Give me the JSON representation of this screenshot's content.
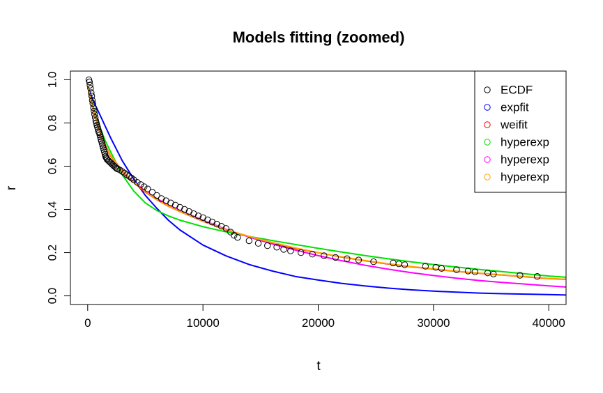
{
  "chart_data": {
    "type": "line",
    "title": "Models fitting (zoomed)",
    "xlabel": "t",
    "ylabel": "r",
    "xlim": [
      -1500,
      41500
    ],
    "ylim": [
      -0.04,
      1.04
    ],
    "xticks": [
      0,
      10000,
      20000,
      30000,
      40000
    ],
    "xtick_labels": [
      "0",
      "10000",
      "20000",
      "30000",
      "40000"
    ],
    "yticks": [
      0.0,
      0.2,
      0.4,
      0.6,
      0.8,
      1.0
    ],
    "ytick_labels": [
      "0.0",
      "0.2",
      "0.4",
      "0.6",
      "0.8",
      "1.0"
    ],
    "grid": false,
    "legend_position": "top-right",
    "ecdf": {
      "name": "ECDF",
      "color": "#000000",
      "points": [
        [
          100,
          1.0
        ],
        [
          150,
          0.99
        ],
        [
          200,
          0.975
        ],
        [
          250,
          0.96
        ],
        [
          300,
          0.94
        ],
        [
          350,
          0.925
        ],
        [
          400,
          0.905
        ],
        [
          450,
          0.89
        ],
        [
          500,
          0.87
        ],
        [
          550,
          0.855
        ],
        [
          600,
          0.84
        ],
        [
          650,
          0.825
        ],
        [
          700,
          0.81
        ],
        [
          750,
          0.8
        ],
        [
          800,
          0.79
        ],
        [
          850,
          0.78
        ],
        [
          900,
          0.77
        ],
        [
          950,
          0.76
        ],
        [
          1000,
          0.755
        ],
        [
          1050,
          0.745
        ],
        [
          1100,
          0.735
        ],
        [
          1150,
          0.725
        ],
        [
          1200,
          0.715
        ],
        [
          1250,
          0.705
        ],
        [
          1300,
          0.695
        ],
        [
          1350,
          0.685
        ],
        [
          1400,
          0.675
        ],
        [
          1450,
          0.665
        ],
        [
          1500,
          0.655
        ],
        [
          1550,
          0.645
        ],
        [
          1600,
          0.64
        ],
        [
          1650,
          0.635
        ],
        [
          1700,
          0.63
        ],
        [
          1800,
          0.625
        ],
        [
          1900,
          0.62
        ],
        [
          2000,
          0.615
        ],
        [
          2100,
          0.61
        ],
        [
          2200,
          0.605
        ],
        [
          2300,
          0.6
        ],
        [
          2400,
          0.595
        ],
        [
          2500,
          0.59
        ],
        [
          2600,
          0.587
        ],
        [
          2800,
          0.582
        ],
        [
          3000,
          0.575
        ],
        [
          3200,
          0.568
        ],
        [
          3400,
          0.56
        ],
        [
          3600,
          0.553
        ],
        [
          3800,
          0.545
        ],
        [
          4000,
          0.537
        ],
        [
          4300,
          0.525
        ],
        [
          4600,
          0.515
        ],
        [
          4900,
          0.505
        ],
        [
          5200,
          0.495
        ],
        [
          5600,
          0.48
        ],
        [
          6000,
          0.465
        ],
        [
          6400,
          0.45
        ],
        [
          6800,
          0.44
        ],
        [
          7200,
          0.43
        ],
        [
          7600,
          0.42
        ],
        [
          8000,
          0.41
        ],
        [
          8400,
          0.4
        ],
        [
          8800,
          0.39
        ],
        [
          9200,
          0.38
        ],
        [
          9600,
          0.37
        ],
        [
          10000,
          0.362
        ],
        [
          10400,
          0.352
        ],
        [
          10800,
          0.342
        ],
        [
          11200,
          0.332
        ],
        [
          11600,
          0.322
        ],
        [
          12000,
          0.312
        ],
        [
          12400,
          0.295
        ],
        [
          12700,
          0.28
        ],
        [
          13000,
          0.27
        ],
        [
          14000,
          0.255
        ],
        [
          14800,
          0.243
        ],
        [
          15600,
          0.232
        ],
        [
          16400,
          0.225
        ],
        [
          17000,
          0.215
        ],
        [
          17600,
          0.208
        ],
        [
          18500,
          0.2
        ],
        [
          19500,
          0.193
        ],
        [
          20500,
          0.186
        ],
        [
          21500,
          0.178
        ],
        [
          22500,
          0.172
        ],
        [
          23500,
          0.166
        ],
        [
          24800,
          0.158
        ],
        [
          26500,
          0.152
        ],
        [
          27000,
          0.148
        ],
        [
          27500,
          0.144
        ],
        [
          29300,
          0.137
        ],
        [
          30200,
          0.132
        ],
        [
          30700,
          0.127
        ],
        [
          32000,
          0.121
        ],
        [
          33000,
          0.115
        ],
        [
          33600,
          0.111
        ],
        [
          34700,
          0.106
        ],
        [
          35200,
          0.101
        ],
        [
          37500,
          0.095
        ],
        [
          39000,
          0.09
        ]
      ]
    },
    "series": [
      {
        "name": "expfit",
        "color": "#0000ff",
        "x": [
          0,
          500,
          1000,
          2000,
          3000,
          4000,
          5000,
          6000,
          7000,
          8000,
          10000,
          12000,
          14000,
          16000,
          18000,
          20000,
          22000,
          24000,
          26000,
          28000,
          30000,
          32000,
          34000,
          36000,
          38000,
          40000,
          41500
        ],
        "y": [
          0.97,
          0.9,
          0.845,
          0.73,
          0.625,
          0.54,
          0.465,
          0.405,
          0.35,
          0.305,
          0.235,
          0.185,
          0.145,
          0.115,
          0.09,
          0.073,
          0.058,
          0.046,
          0.036,
          0.028,
          0.022,
          0.017,
          0.013,
          0.01,
          0.008,
          0.006,
          0.004
        ]
      },
      {
        "name": "weifit",
        "color": "#ff0000",
        "x": [
          0,
          500,
          1000,
          1500,
          2000,
          3000,
          4000,
          5000,
          6000,
          7000,
          8000,
          10000,
          12000,
          14000,
          16000,
          18000,
          20000,
          22000,
          24000,
          26000,
          28000,
          30000,
          32000,
          34000,
          36000,
          38000,
          40000,
          41500
        ],
        "y": [
          0.97,
          0.855,
          0.765,
          0.695,
          0.645,
          0.575,
          0.525,
          0.48,
          0.445,
          0.415,
          0.39,
          0.345,
          0.305,
          0.275,
          0.245,
          0.22,
          0.2,
          0.18,
          0.163,
          0.148,
          0.135,
          0.124,
          0.113,
          0.104,
          0.096,
          0.088,
          0.08,
          0.076
        ]
      },
      {
        "name": "hyperexp",
        "color": "#00e000",
        "x": [
          0,
          500,
          1000,
          1500,
          2000,
          3000,
          4000,
          5000,
          6000,
          7000,
          8000,
          10000,
          12000,
          14000,
          16000,
          18000,
          20000,
          22000,
          24000,
          26000,
          28000,
          30000,
          32000,
          34000,
          36000,
          38000,
          40000,
          41500
        ],
        "y": [
          0.97,
          0.87,
          0.79,
          0.72,
          0.665,
          0.56,
          0.485,
          0.43,
          0.395,
          0.37,
          0.35,
          0.32,
          0.296,
          0.275,
          0.256,
          0.238,
          0.22,
          0.203,
          0.187,
          0.172,
          0.158,
          0.145,
          0.133,
          0.122,
          0.112,
          0.102,
          0.092,
          0.086
        ]
      },
      {
        "name": "hyperexp",
        "color": "#ff00ff",
        "x": [
          0,
          500,
          1000,
          1500,
          2000,
          3000,
          4000,
          5000,
          6000,
          7000,
          8000,
          10000,
          12000,
          14000,
          16000,
          18000,
          20000,
          22000,
          24000,
          26000,
          28000,
          30000,
          32000,
          34000,
          36000,
          38000,
          40000,
          41500
        ],
        "y": [
          0.97,
          0.86,
          0.77,
          0.7,
          0.648,
          0.58,
          0.528,
          0.485,
          0.45,
          0.42,
          0.395,
          0.35,
          0.308,
          0.272,
          0.24,
          0.212,
          0.186,
          0.163,
          0.142,
          0.124,
          0.108,
          0.094,
          0.082,
          0.071,
          0.062,
          0.054,
          0.046,
          0.041
        ]
      },
      {
        "name": "hyperexp",
        "color": "#ffa500",
        "x": [
          0,
          500,
          1000,
          1500,
          2000,
          3000,
          4000,
          5000,
          6000,
          7000,
          8000,
          10000,
          12000,
          14000,
          16000,
          18000,
          20000,
          22000,
          24000,
          26000,
          28000,
          30000,
          32000,
          34000,
          36000,
          38000,
          40000,
          41500
        ],
        "y": [
          0.97,
          0.858,
          0.768,
          0.698,
          0.648,
          0.578,
          0.527,
          0.482,
          0.446,
          0.416,
          0.391,
          0.346,
          0.306,
          0.275,
          0.247,
          0.222,
          0.2,
          0.181,
          0.164,
          0.149,
          0.136,
          0.125,
          0.114,
          0.105,
          0.097,
          0.089,
          0.081,
          0.077
        ]
      }
    ],
    "legend": [
      {
        "label": "ECDF",
        "color": "#000000"
      },
      {
        "label": "expfit",
        "color": "#0000ff"
      },
      {
        "label": "weifit",
        "color": "#ff0000"
      },
      {
        "label": "hyperexp",
        "color": "#00e000"
      },
      {
        "label": "hyperexp",
        "color": "#ff00ff"
      },
      {
        "label": "hyperexp",
        "color": "#ffa500"
      }
    ]
  }
}
